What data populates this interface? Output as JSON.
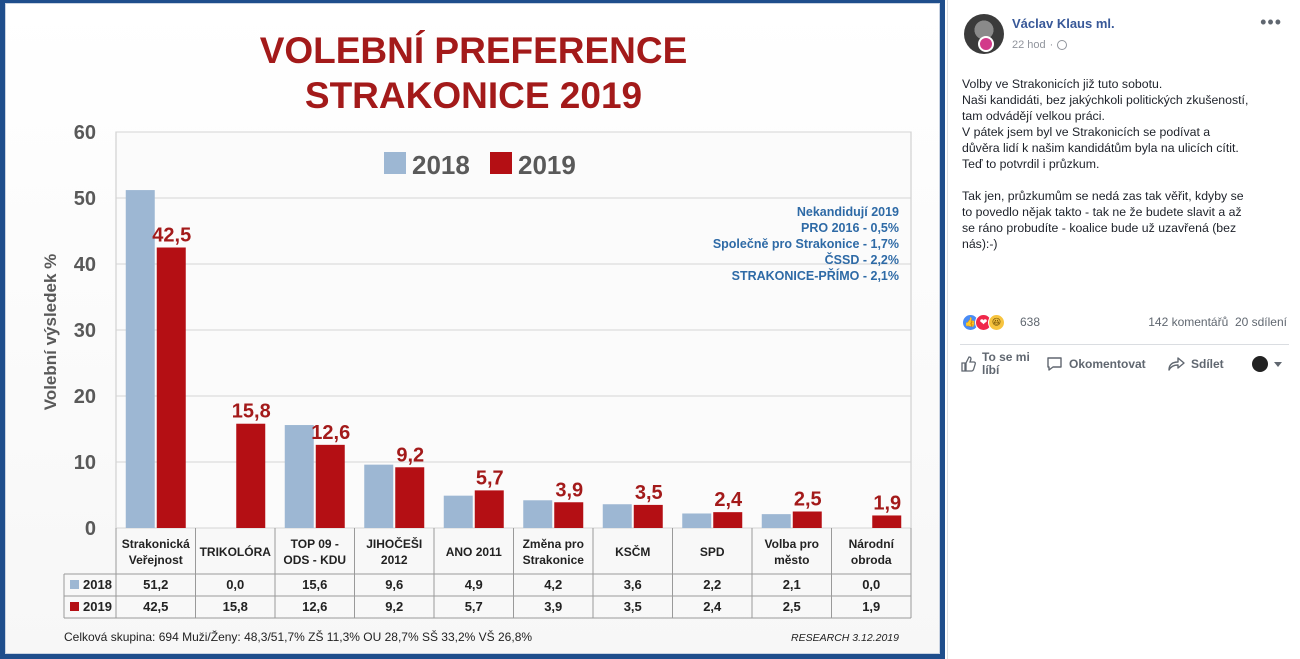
{
  "slide": {
    "title_line1": "VOLEBNÍ PREFERENCE",
    "title_line2": "STRAKONICE 2019",
    "footer_left": "Celková skupina: 694   Muži/Ženy: 48,3/51,7%   ZŠ 11,3%  OU 28,7%  SŠ 33,2%  VŠ 26,8%",
    "footer_right": "RESEARCH 3.12.2019",
    "notes": [
      "Nekandidují 2019",
      "PRO 2016 - 0,5%",
      "Společně pro Strakonice - 1,7%",
      "ČSSD -  2,2%",
      "STRAKONICE-PŘÍMO - 2,1%"
    ]
  },
  "chart_data": {
    "type": "bar",
    "ylabel": "Volební výsledek %",
    "ylim": [
      0,
      60
    ],
    "yticks": [
      0,
      10,
      20,
      30,
      40,
      50,
      60
    ],
    "legend_position": "top-center",
    "categories": [
      [
        "Strakonická",
        "Veřejnost"
      ],
      [
        "TRIKOLÓRA"
      ],
      [
        "TOP 09 -",
        "ODS - KDU"
      ],
      [
        "JIHOČEŠI",
        "2012"
      ],
      [
        "ANO 2011"
      ],
      [
        "Změna pro",
        "Strakonice"
      ],
      [
        "KSČM"
      ],
      [
        "SPD"
      ],
      [
        "Volba pro",
        "město"
      ],
      [
        "Národní",
        "obroda"
      ]
    ],
    "series": [
      {
        "name": "2018",
        "color": "#9db7d3",
        "values": [
          51.2,
          0.0,
          15.6,
          9.6,
          4.9,
          4.2,
          3.6,
          2.2,
          2.1,
          0.0
        ],
        "labels": [
          "51,2",
          "0,0",
          "15,6",
          "9,6",
          "4,9",
          "4,2",
          "3,6",
          "2,2",
          "2,1",
          "0,0"
        ]
      },
      {
        "name": "2019",
        "color": "#b40f14",
        "values": [
          42.5,
          15.8,
          12.6,
          9.2,
          5.7,
          3.9,
          3.5,
          2.4,
          2.5,
          1.9
        ],
        "labels": [
          "42,5",
          "15,8",
          "12,6",
          "9,2",
          "5,7",
          "3,9",
          "3,5",
          "2,4",
          "2,5",
          "1,9"
        ]
      }
    ]
  },
  "post": {
    "author": "Václav Klaus ml.",
    "time": "22 hod",
    "more_glyph": "•••",
    "paragraph1": [
      "Volby ve Strakonicích již tuto sobotu.",
      "Naši kandidáti, bez jakýchkoli politických zkušeností,",
      "tam odvádějí velkou práci.",
      "V pátek jsem byl ve Strakonicích se podívat a",
      "důvěra lidí k našim kandidátům byla na ulicích cítit.",
      "Teď to potvrdil i průzkum."
    ],
    "paragraph2": [
      "Tak jen, průzkumům se nedá zas tak věřit, kdyby se",
      "to povedlo nějak takto - tak ne že budete slavit a až",
      "se ráno probudíte - koalice bude už uzavřená (bez",
      "nás):-)"
    ],
    "reaction_count": "638",
    "comments": "142 komentářů",
    "shares": "20 sdílení",
    "actions": {
      "like_line1": "To se mi",
      "like_line2": "líbí",
      "comment": "Okomentovat",
      "share": "Sdílet"
    }
  }
}
